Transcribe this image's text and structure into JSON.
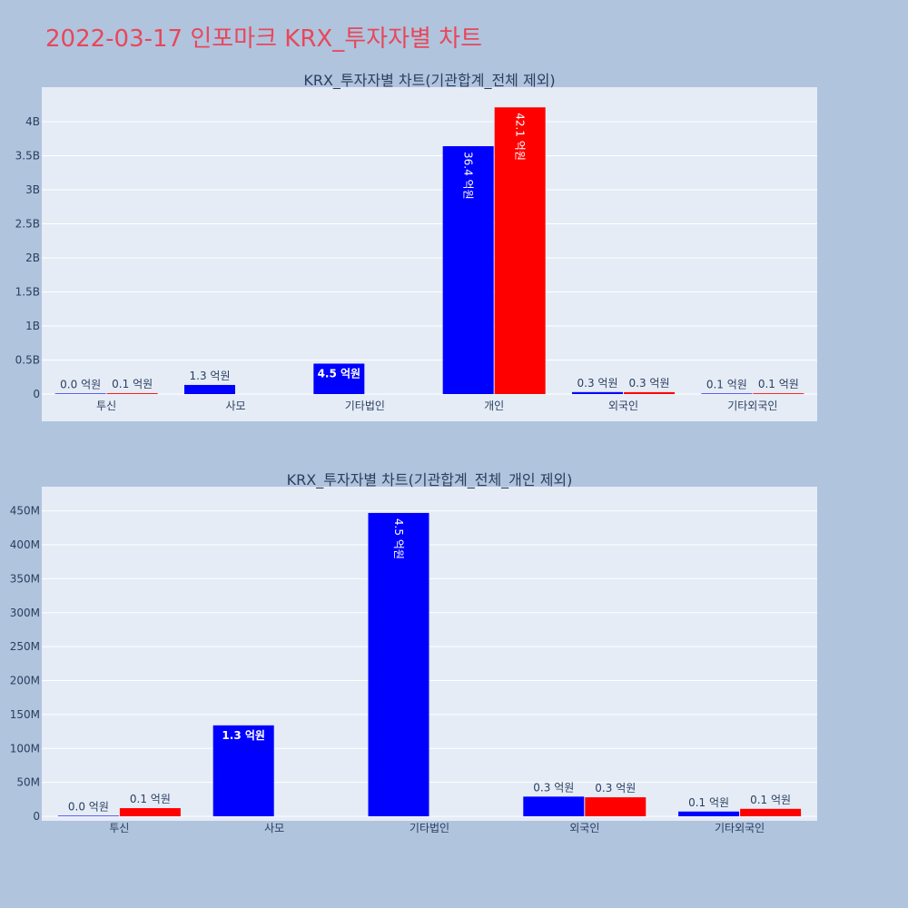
{
  "page": {
    "title": "2022-03-17 인포마크 KRX_투자자별 차트"
  },
  "colors": {
    "series_a": "#0000ff",
    "series_b": "#ff0000",
    "title": "#e8475b",
    "background": "#b0c4de",
    "plot_background": "#e5ecf6"
  },
  "chart_data": [
    {
      "type": "bar",
      "title": "KRX_투자자별 차트(기관합계_전체 제외)",
      "categories": [
        "투신",
        "사모",
        "기타법인",
        "개인",
        "외국인",
        "기타외국인"
      ],
      "ylim": [
        0,
        4.4
      ],
      "yticks": [
        0,
        0.5,
        1,
        1.5,
        2,
        2.5,
        3,
        3.5,
        4
      ],
      "ytick_labels": [
        "0",
        "0.5B",
        "1B",
        "1.5B",
        "2B",
        "2.5B",
        "3B",
        "3.5B",
        "4B"
      ],
      "grid": true,
      "series": [
        {
          "color": "#0000ff",
          "values": [
            0.0003,
            0.134,
            0.447,
            3.64,
            0.029,
            0.007
          ],
          "labels": [
            "0.0 억원",
            "1.3 억원",
            "4.5 억원",
            "36.4 억원",
            "0.3 억원",
            "0.1 억원"
          ]
        },
        {
          "color": "#ff0000",
          "values": [
            0.012,
            null,
            null,
            4.21,
            0.028,
            0.011
          ],
          "labels": [
            "0.1 억원",
            "",
            "",
            "42.1 억원",
            "0.3 억원",
            "0.1 억원"
          ]
        }
      ]
    },
    {
      "type": "bar",
      "title": "KRX_투자자별 차트(기관합계_전체_개인 제외)",
      "categories": [
        "투신",
        "사모",
        "기타법인",
        "외국인",
        "기타외국인"
      ],
      "ylim": [
        0,
        475
      ],
      "yticks": [
        0,
        50,
        100,
        150,
        200,
        250,
        300,
        350,
        400,
        450
      ],
      "ytick_labels": [
        "0",
        "50M",
        "100M",
        "150M",
        "200M",
        "250M",
        "300M",
        "350M",
        "400M",
        "450M"
      ],
      "grid": true,
      "series": [
        {
          "color": "#0000ff",
          "values": [
            0.3,
            134,
            447,
            29,
            7
          ],
          "labels": [
            "0.0 억원",
            "1.3 억원",
            "4.5 억원",
            "0.3 억원",
            "0.1 억원"
          ]
        },
        {
          "color": "#ff0000",
          "values": [
            12,
            null,
            null,
            28,
            11
          ],
          "labels": [
            "0.1 억원",
            "",
            "",
            "0.3 억원",
            "0.1 억원"
          ]
        }
      ]
    }
  ]
}
